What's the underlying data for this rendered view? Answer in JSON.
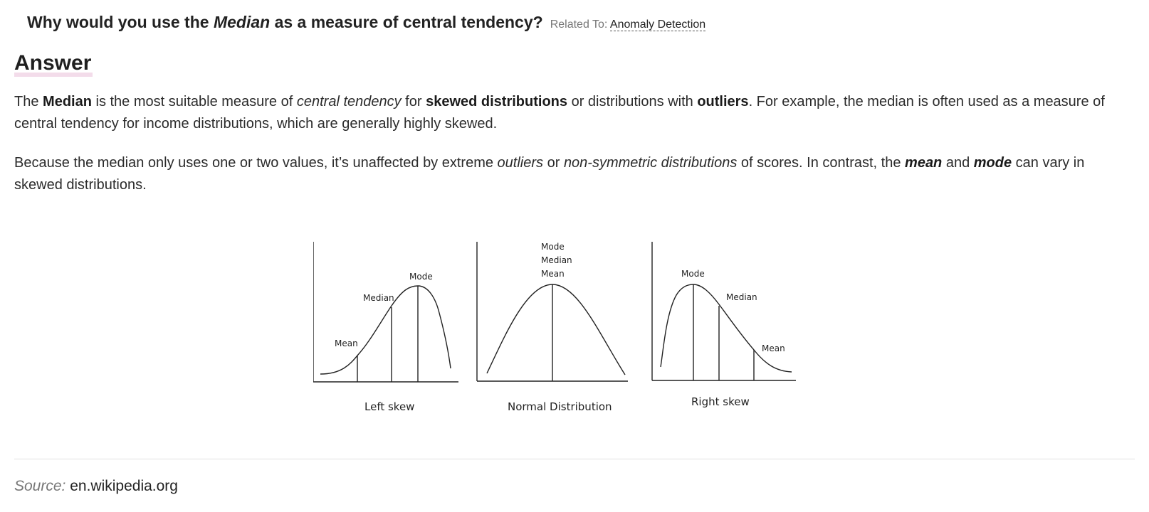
{
  "question": {
    "prefix": "Why would you use the ",
    "emphasis": "Median",
    "suffix": " as a measure of central tendency?",
    "related_label": "Related To:",
    "related_link": "Anomaly Detection"
  },
  "answer_heading": "Answer",
  "paragraph1": {
    "t1": "The ",
    "b1": "Median",
    "t2": " is the most suitable measure of ",
    "i1": "central tendency",
    "t3": " for ",
    "b2": "skewed distributions",
    "t4": " or distributions with ",
    "b3": "outliers",
    "t5": ". For example, the median is often used as a measure of central tendency for income distributions, which are generally highly skewed."
  },
  "paragraph2": {
    "t1": "Because the median only uses one or two values, it’s unaffected by extreme ",
    "i1": "outliers",
    "t2": " or ",
    "i2": "non-symmetric distributions",
    "t3": " of scores. In contrast, the ",
    "bi1": "mean",
    "t4": " and ",
    "bi2": "mode",
    "t5": " can vary in skewed distributions."
  },
  "figure": {
    "left_skew": {
      "caption": "Left skew",
      "mean": "Mean",
      "median": "Median",
      "mode": "Mode"
    },
    "normal": {
      "caption": "Normal Distribution",
      "mode": "Mode",
      "median": "Median",
      "mean": "Mean"
    },
    "right_skew": {
      "caption": "Right skew",
      "mode": "Mode",
      "median": "Median",
      "mean": "Mean"
    }
  },
  "source": {
    "label": "Source:",
    "value": "en.wikipedia.org"
  }
}
